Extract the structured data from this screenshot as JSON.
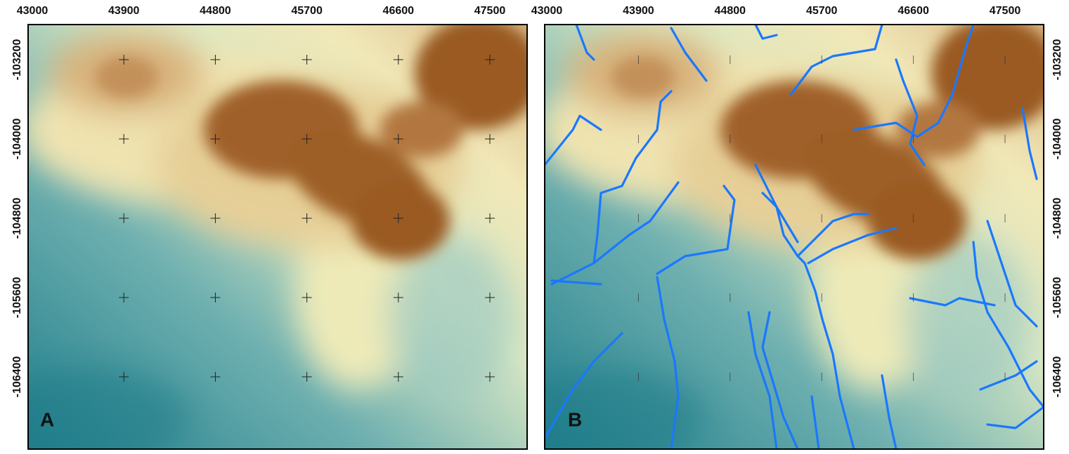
{
  "panels": [
    {
      "label": "A",
      "xticks": [
        43000,
        43900,
        44800,
        45700,
        46600,
        47500
      ],
      "yticks": [
        -103200,
        -104000,
        -104800,
        -105600,
        -106400
      ]
    },
    {
      "label": "B",
      "xticks": [
        43000,
        43900,
        44800,
        45700,
        46600,
        47500
      ],
      "yticks": [
        -103200,
        -104000,
        -104800,
        -105600,
        -106400
      ]
    }
  ]
}
